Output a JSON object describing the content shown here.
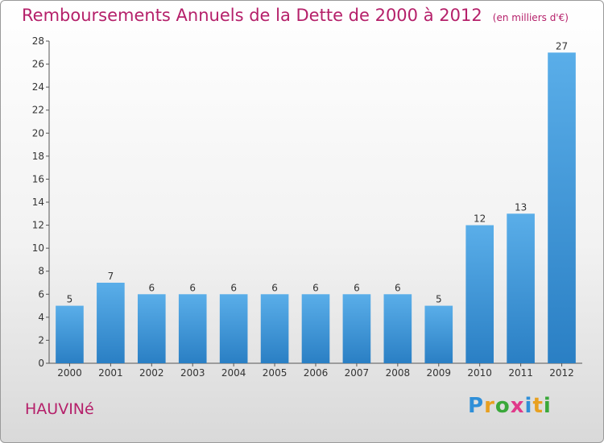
{
  "header": {
    "title": "Remboursements Annuels de la Dette de 2000 à 2012",
    "subtitle": "(en milliers d'€)"
  },
  "commune": "HAUVINé",
  "logo": {
    "text": "Proxiti",
    "letters": [
      "P",
      "r",
      "o",
      "x",
      "i",
      "t",
      "i"
    ],
    "colors": [
      "#2f8fd8",
      "#e8a020",
      "#3aa83a",
      "#e03a8a",
      "#2f8fd8",
      "#e8a020",
      "#3aa83a"
    ]
  },
  "chart_data": {
    "type": "bar",
    "categories": [
      "2000",
      "2001",
      "2002",
      "2003",
      "2004",
      "2005",
      "2006",
      "2007",
      "2008",
      "2009",
      "2010",
      "2011",
      "2012"
    ],
    "values": [
      5,
      7,
      6,
      6,
      6,
      6,
      6,
      6,
      6,
      5,
      12,
      13,
      27
    ],
    "value_labels": [
      "5",
      "7",
      "6",
      "6",
      "6",
      "6",
      "6",
      "6",
      "6",
      "5",
      "12",
      "13",
      "27"
    ],
    "ylim": [
      0,
      28
    ],
    "yticks": [
      0,
      2,
      4,
      6,
      8,
      10,
      12,
      14,
      16,
      18,
      20,
      22,
      24,
      26,
      28
    ],
    "ytick_labels": [
      "0",
      "2",
      "4",
      "6",
      "8",
      "10",
      "12",
      "14",
      "16",
      "18",
      "20",
      "22",
      "24",
      "26",
      "28"
    ],
    "grid": false,
    "bar_color": "#3d97da"
  }
}
